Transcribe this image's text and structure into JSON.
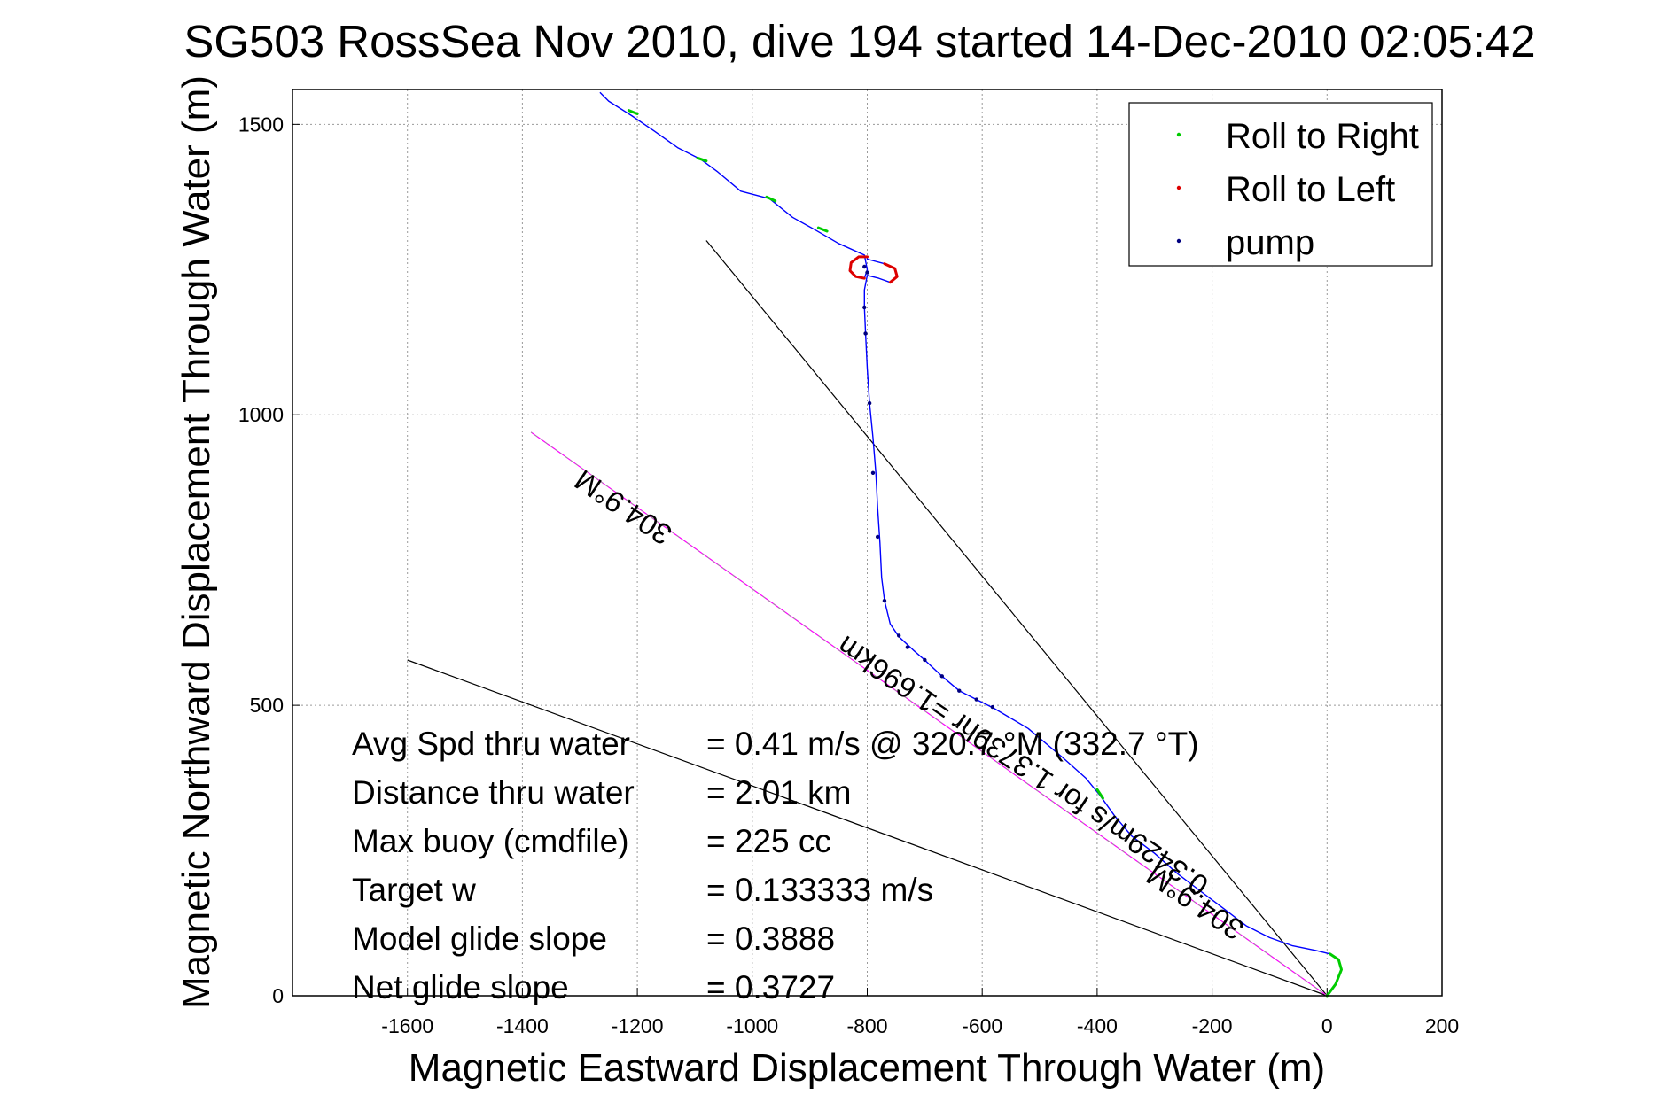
{
  "chart_data": {
    "type": "line",
    "title": "SG503 RossSea Nov 2010, dive 194 started 14-Dec-2010 02:05:42",
    "xlabel": "Magnetic Eastward Displacement Through Water (m)",
    "ylabel": "Magnetic Northward Displacement Through Water (m)",
    "xlim": [
      -1800,
      200
    ],
    "ylim": [
      0,
      1560
    ],
    "xticks": [
      -1600,
      -1400,
      -1200,
      -1000,
      -800,
      -600,
      -400,
      -200,
      0,
      200
    ],
    "yticks": [
      0,
      500,
      1000,
      1500
    ],
    "grid": true,
    "legend_position": "top-right",
    "legend": [
      {
        "label": "Roll to Right",
        "color": "#00cc00"
      },
      {
        "label": "Roll to Left",
        "color": "#dd0000"
      },
      {
        "label": "pump",
        "color": "#000080"
      }
    ],
    "track": {
      "color": "#0000ff",
      "points": [
        [
          0,
          0
        ],
        [
          15,
          20
        ],
        [
          25,
          45
        ],
        [
          20,
          62
        ],
        [
          5,
          72
        ],
        [
          -20,
          78
        ],
        [
          -60,
          86
        ],
        [
          -100,
          100
        ],
        [
          -140,
          120
        ],
        [
          -180,
          150
        ],
        [
          -220,
          180
        ],
        [
          -260,
          210
        ],
        [
          -300,
          245
        ],
        [
          -340,
          275
        ],
        [
          -370,
          310
        ],
        [
          -395,
          345
        ],
        [
          -420,
          375
        ],
        [
          -460,
          410
        ],
        [
          -520,
          460
        ],
        [
          -580,
          495
        ],
        [
          -610,
          510
        ],
        [
          -640,
          525
        ],
        [
          -670,
          550
        ],
        [
          -700,
          578
        ],
        [
          -720,
          595
        ],
        [
          -745,
          618
        ],
        [
          -760,
          640
        ],
        [
          -770,
          680
        ],
        [
          -775,
          720
        ],
        [
          -778,
          780
        ],
        [
          -782,
          840
        ],
        [
          -785,
          900
        ],
        [
          -790,
          960
        ],
        [
          -796,
          1020
        ],
        [
          -800,
          1080
        ],
        [
          -803,
          1140
        ],
        [
          -805,
          1185
        ],
        [
          -805,
          1215
        ],
        [
          -800,
          1240
        ],
        [
          -780,
          1235
        ],
        [
          -760,
          1228
        ],
        [
          -748,
          1238
        ],
        [
          -752,
          1252
        ],
        [
          -770,
          1260
        ],
        [
          -800,
          1268
        ],
        [
          -800,
          1272
        ],
        [
          -815,
          1272
        ],
        [
          -828,
          1262
        ],
        [
          -830,
          1248
        ],
        [
          -820,
          1238
        ],
        [
          -805,
          1235
        ],
        [
          -800,
          1250
        ],
        [
          -805,
          1275
        ],
        [
          -850,
          1295
        ],
        [
          -890,
          1318
        ],
        [
          -930,
          1340
        ],
        [
          -970,
          1372
        ],
        [
          -1020,
          1385
        ],
        [
          -1060,
          1418
        ],
        [
          -1090,
          1440
        ],
        [
          -1130,
          1460
        ],
        [
          -1170,
          1488
        ],
        [
          -1210,
          1515
        ],
        [
          -1250,
          1540
        ],
        [
          -1265,
          1555
        ]
      ]
    },
    "roll_right_segments": [
      [
        [
          0,
          0
        ],
        [
          15,
          20
        ],
        [
          25,
          45
        ],
        [
          20,
          62
        ],
        [
          5,
          72
        ]
      ],
      [
        [
          -390,
          340
        ],
        [
          -400,
          355
        ]
      ],
      [
        [
          -870,
          1316
        ],
        [
          -885,
          1322
        ]
      ],
      [
        [
          -960,
          1368
        ],
        [
          -975,
          1375
        ]
      ],
      [
        [
          -1080,
          1437
        ],
        [
          -1095,
          1442
        ]
      ],
      [
        [
          -1200,
          1518
        ],
        [
          -1215,
          1524
        ]
      ]
    ],
    "roll_left_segments": [
      [
        [
          -800,
          1272
        ],
        [
          -815,
          1272
        ],
        [
          -828,
          1262
        ],
        [
          -830,
          1248
        ],
        [
          -820,
          1238
        ],
        [
          -805,
          1235
        ]
      ],
      [
        [
          -760,
          1228
        ],
        [
          -748,
          1238
        ],
        [
          -752,
          1252
        ],
        [
          -770,
          1260
        ]
      ]
    ],
    "pump_points": [
      [
        -805,
        1185
      ],
      [
        -803,
        1140
      ],
      [
        -796,
        1020
      ],
      [
        -790,
        900
      ],
      [
        -782,
        790
      ],
      [
        -770,
        680
      ],
      [
        -745,
        620
      ],
      [
        -730,
        600
      ],
      [
        -700,
        578
      ],
      [
        -670,
        550
      ],
      [
        -640,
        525
      ],
      [
        -610,
        510
      ],
      [
        -582,
        497
      ],
      [
        -800,
        1245
      ],
      [
        -805,
        1255
      ]
    ],
    "reference_lines": [
      {
        "color": "#000000",
        "points": [
          [
            0,
            0
          ],
          [
            -1080,
            1300
          ]
        ]
      },
      {
        "color": "#000000",
        "points": [
          [
            0,
            0
          ],
          [
            -1600,
            578
          ]
        ]
      },
      {
        "color": "#ff00ff",
        "points": [
          [
            0,
            0
          ],
          [
            -1385,
            970
          ]
        ]
      },
      {
        "color": "#999999",
        "points": [
          [
            0,
            0
          ],
          [
            -1385,
            970
          ]
        ]
      }
    ],
    "annotations": [
      {
        "text": "304.9°M",
        "x": -1215,
        "y": 855,
        "angle": 34
      },
      {
        "text": "0.3429m/s for 1.3739hr =1.696km",
        "x": -520,
        "y": 410,
        "angle": 34
      },
      {
        "text": "304.9°M",
        "x": -220,
        "y": 175,
        "angle": 34
      }
    ],
    "stats": [
      {
        "label": "Avg Spd thru water",
        "value": "=  0.41 m/s @ 320.7 °M (332.7 °T)"
      },
      {
        "label": "Distance thru water",
        "value": "=  2.01 km"
      },
      {
        "label": "Max buoy (cmdfile)",
        "value": "= 225 cc"
      },
      {
        "label": "Target w",
        "value": "= 0.133333 m/s"
      },
      {
        "label": "Model glide slope",
        "value": "= 0.3888"
      },
      {
        "label": "Net glide slope",
        "value": "= 0.3727"
      }
    ]
  }
}
